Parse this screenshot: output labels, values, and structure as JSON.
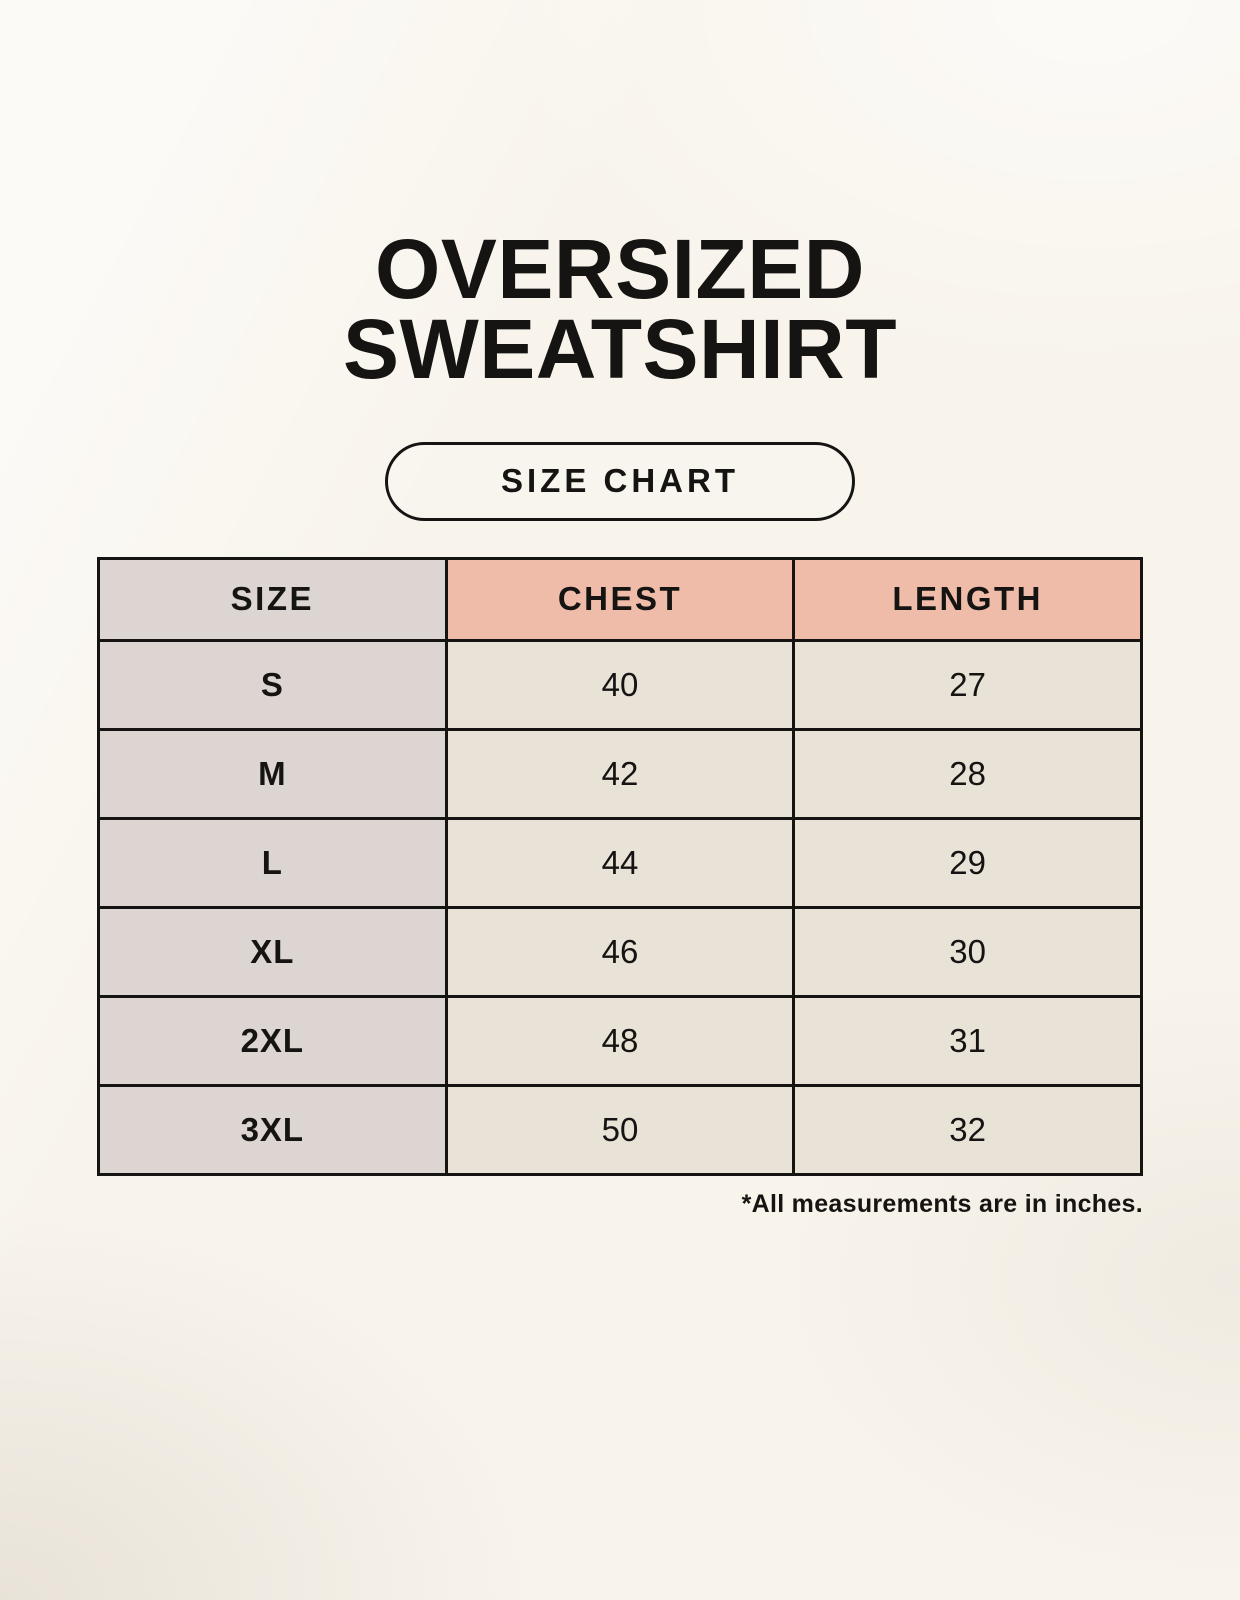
{
  "page": {
    "title_line1": "OVERSIZED",
    "title_line2": "SWEATSHIRT",
    "badge_label": "SIZE CHART",
    "footnote": "*All measurements are in inches."
  },
  "table": {
    "headers": [
      "SIZE",
      "CHEST",
      "LENGTH"
    ],
    "rows": [
      {
        "size": "S",
        "chest": "40",
        "length": "27"
      },
      {
        "size": "M",
        "chest": "42",
        "length": "28"
      },
      {
        "size": "L",
        "chest": "44",
        "length": "29"
      },
      {
        "size": "XL",
        "chest": "46",
        "length": "30"
      },
      {
        "size": "2XL",
        "chest": "48",
        "length": "31"
      },
      {
        "size": "3XL",
        "chest": "50",
        "length": "32"
      }
    ]
  },
  "colors": {
    "background": "#f8f4ec",
    "header_accent": "#efbcaa",
    "size_column": "#dcd5d1",
    "cell_background": "#e9e2d7",
    "border": "#151412",
    "text": "#151412"
  },
  "chart_data": {
    "type": "table",
    "title": "OVERSIZED SWEATSHIRT",
    "subtitle": "SIZE CHART",
    "columns": [
      "SIZE",
      "CHEST",
      "LENGTH"
    ],
    "rows": [
      [
        "S",
        40,
        27
      ],
      [
        "M",
        42,
        28
      ],
      [
        "L",
        44,
        29
      ],
      [
        "XL",
        46,
        30
      ],
      [
        "2XL",
        48,
        31
      ],
      [
        "3XL",
        50,
        32
      ]
    ],
    "units": "inches",
    "note": "*All measurements are in inches."
  }
}
